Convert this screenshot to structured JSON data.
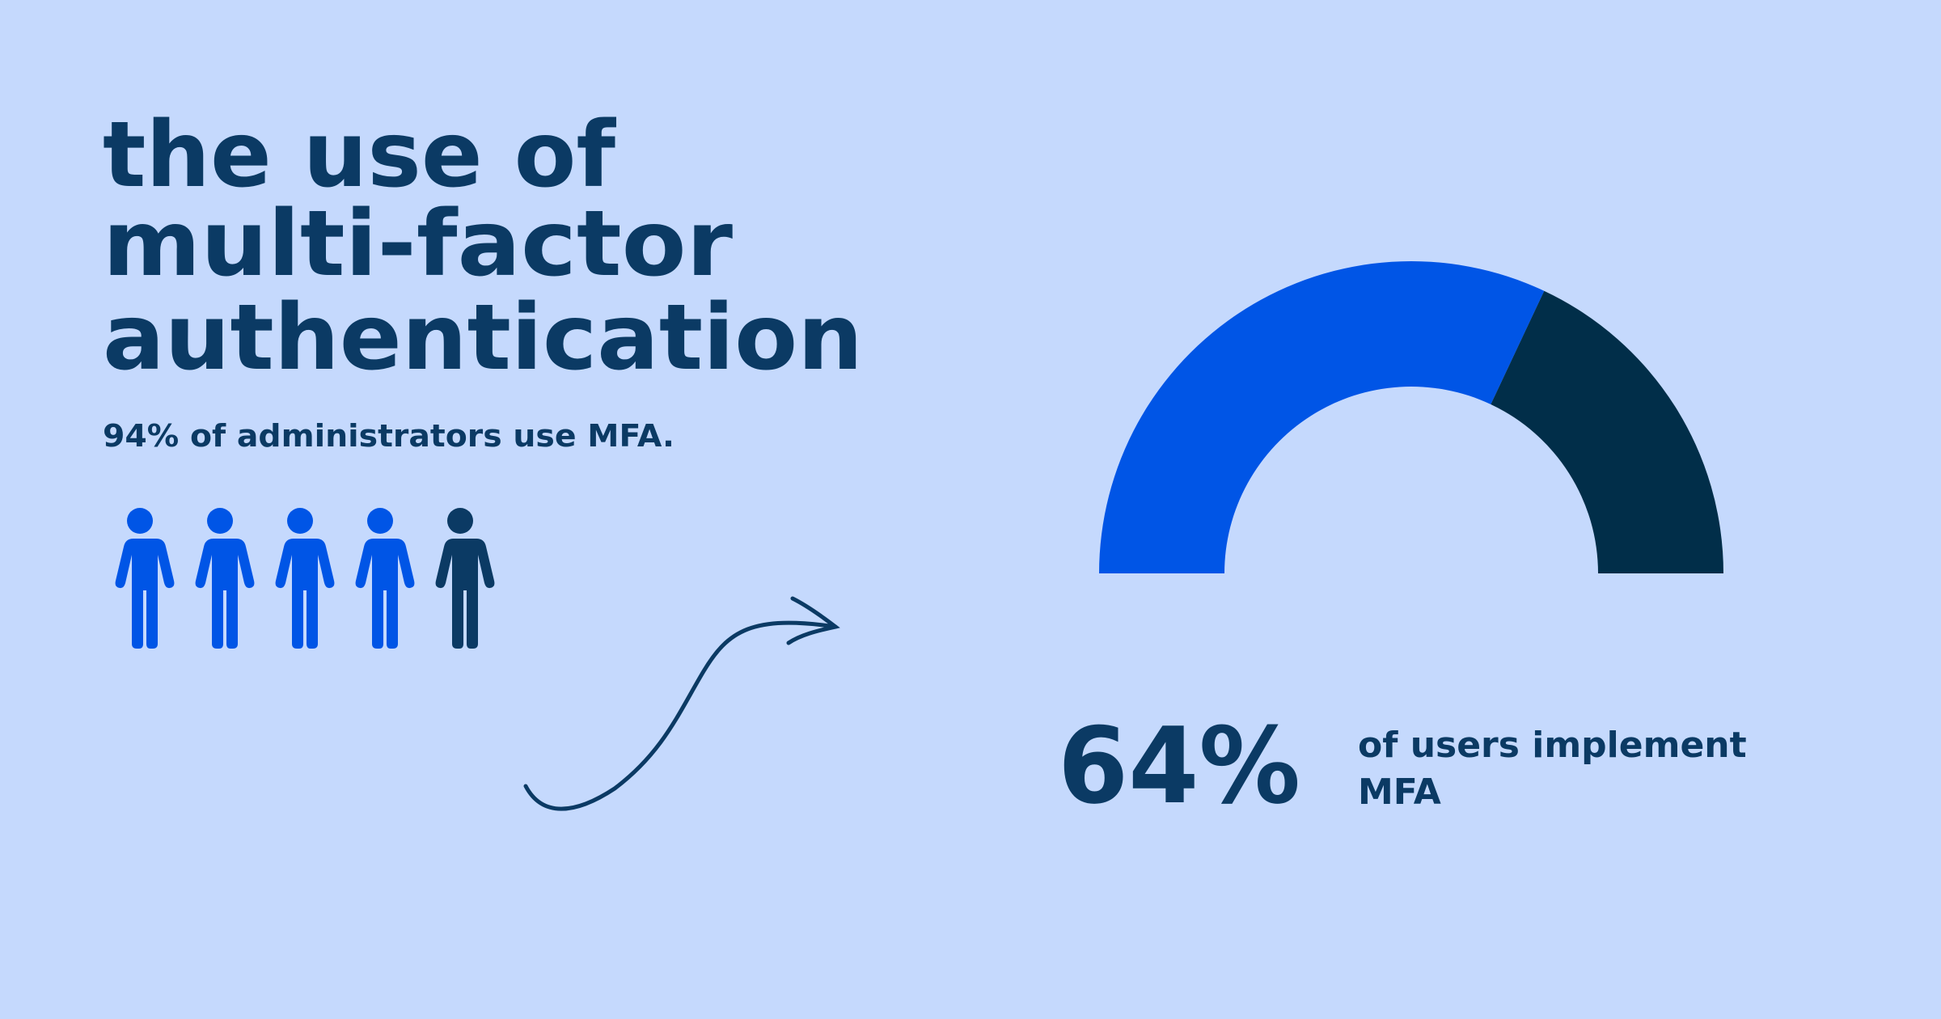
{
  "header": {
    "title_lines": [
      "the use of",
      "multi-factor",
      "authentication"
    ],
    "subtitle": "94% of administrators use MFA."
  },
  "chart_data": {
    "type": "gauge",
    "values": [
      64
    ],
    "value_labels": [
      "64%"
    ],
    "ylim": [
      0,
      100
    ],
    "caption_lines": [
      "of users implement",
      "MFA"
    ],
    "color": "#0055e6",
    "rest_color": "#012e49"
  }
}
